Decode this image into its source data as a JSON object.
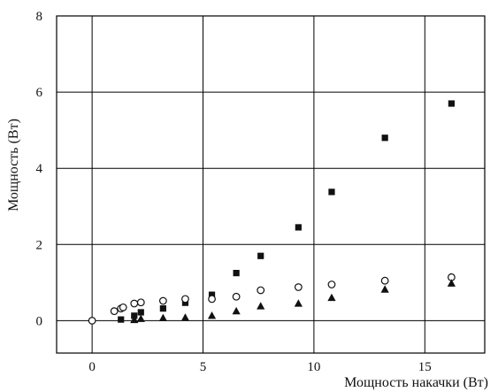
{
  "chart_data": {
    "type": "scatter",
    "title": "",
    "xlabel": "Мощность накачки (Вт)",
    "ylabel": "Мощность (Вт)",
    "xlim": [
      -1.6,
      17.7
    ],
    "ylim": [
      -0.85,
      8
    ],
    "xticks": [
      0,
      5,
      10,
      15
    ],
    "yticks": [
      0,
      2,
      4,
      6,
      8
    ],
    "grid": true,
    "legend": "none",
    "series": [
      {
        "marker": "square-filled",
        "color": "#111111",
        "x": [
          1.3,
          1.9,
          2.2,
          3.2,
          4.2,
          5.4,
          6.5,
          7.6,
          9.3,
          10.8,
          13.2,
          16.2
        ],
        "y": [
          0.03,
          0.13,
          0.22,
          0.32,
          0.47,
          0.68,
          1.25,
          1.7,
          2.45,
          3.38,
          4.8,
          5.7
        ]
      },
      {
        "marker": "circle-open",
        "color": "#111111",
        "x": [
          0.0,
          1.0,
          1.3,
          1.4,
          1.9,
          2.2,
          3.2,
          4.2,
          5.4,
          6.5,
          7.6,
          9.3,
          10.8,
          13.2,
          16.2
        ],
        "y": [
          0.0,
          0.25,
          0.32,
          0.35,
          0.45,
          0.48,
          0.52,
          0.57,
          0.57,
          0.63,
          0.8,
          0.88,
          0.95,
          1.05,
          1.14
        ]
      },
      {
        "marker": "triangle-filled",
        "color": "#111111",
        "x": [
          1.9,
          2.2,
          3.2,
          4.2,
          5.4,
          6.5,
          7.6,
          9.3,
          10.8,
          13.2,
          16.2
        ],
        "y": [
          0.02,
          0.05,
          0.07,
          0.08,
          0.13,
          0.25,
          0.38,
          0.45,
          0.6,
          0.82,
          0.98
        ]
      }
    ]
  }
}
